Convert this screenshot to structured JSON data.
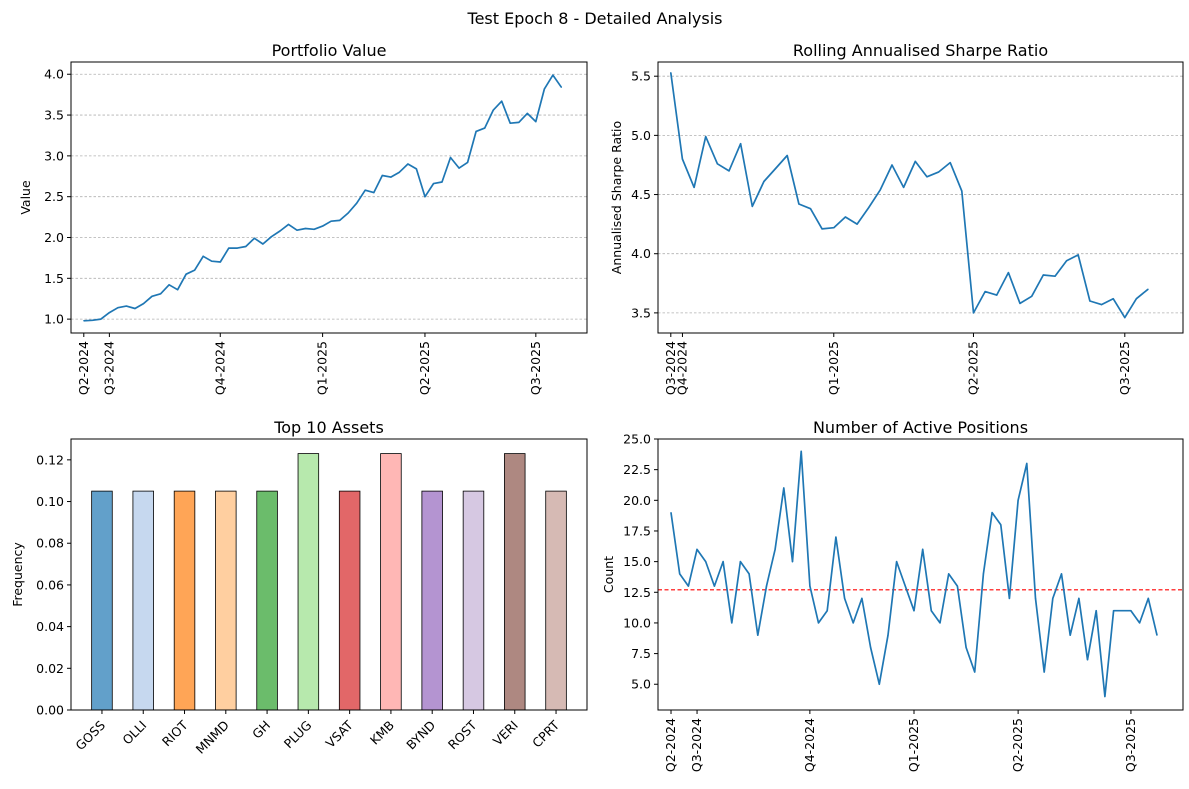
{
  "figure_title": "Test Epoch 8 - Detailed Analysis",
  "chart_data": [
    {
      "type": "line",
      "title": "Portfolio Value",
      "xlabel": "",
      "ylabel": "Value",
      "x_tick_labels": [
        "Q2-2024",
        "Q3-2024",
        "Q4-2024",
        "Q1-2025",
        "Q2-2025",
        "Q3-2025"
      ],
      "x_tick_positions": [
        0,
        3,
        16,
        28,
        40,
        53
      ],
      "xlim": [
        -1.5,
        59
      ],
      "ylim": [
        0.83,
        4.15
      ],
      "y_ticks": [
        1.0,
        1.5,
        2.0,
        2.5,
        3.0,
        3.5,
        4.0
      ],
      "grid": "y-dashed",
      "color": "#1f77b4",
      "series": [
        {
          "values": [
            0.98,
            0.985,
            1.0,
            1.08,
            1.14,
            1.16,
            1.13,
            1.19,
            1.28,
            1.31,
            1.42,
            1.36,
            1.55,
            1.6,
            1.77,
            1.71,
            1.7,
            1.87,
            1.87,
            1.89,
            1.99,
            1.92,
            2.01,
            2.08,
            2.16,
            2.09,
            2.11,
            2.1,
            2.14,
            2.2,
            2.21,
            2.3,
            2.42,
            2.58,
            2.55,
            2.76,
            2.74,
            2.8,
            2.9,
            2.84,
            2.5,
            2.66,
            2.68,
            2.98,
            2.85,
            2.92,
            3.3,
            3.34,
            3.56,
            3.67,
            3.4,
            3.41,
            3.52,
            3.42,
            3.82,
            3.99,
            3.84
          ]
        }
      ]
    },
    {
      "type": "line",
      "title": "Rolling Annualised Sharpe Ratio",
      "xlabel": "",
      "ylabel": "Annualised Sharpe Ratio",
      "x_tick_labels": [
        "Q3-2024",
        "Q4-2024",
        "Q1-2025",
        "Q2-2025",
        "Q3-2025"
      ],
      "x_tick_positions": [
        0,
        1,
        14,
        26,
        39
      ],
      "xlim": [
        -1.1,
        44
      ],
      "ylim": [
        3.33,
        5.62
      ],
      "y_ticks": [
        3.5,
        4.0,
        4.5,
        5.0,
        5.5
      ],
      "grid": "y-dashed",
      "color": "#1f77b4",
      "series": [
        {
          "values": [
            5.53,
            4.8,
            4.56,
            4.99,
            4.76,
            4.7,
            4.93,
            4.4,
            4.61,
            4.72,
            4.83,
            4.42,
            4.38,
            4.21,
            4.22,
            4.31,
            4.25,
            4.39,
            4.54,
            4.75,
            4.56,
            4.78,
            4.65,
            4.69,
            4.77,
            4.53,
            3.5,
            3.68,
            3.65,
            3.84,
            3.58,
            3.64,
            3.82,
            3.81,
            3.94,
            3.99,
            3.6,
            3.57,
            3.62,
            3.46,
            3.62,
            3.7
          ]
        }
      ]
    },
    {
      "type": "bar",
      "title": "Top 10 Assets",
      "xlabel": "",
      "ylabel": "Frequency",
      "categories": [
        "GOSS",
        "OLLI",
        "RIOT",
        "MNMD",
        "GH",
        "PLUG",
        "VSAT",
        "KMB",
        "BYND",
        "ROST",
        "VERI",
        "CPRT"
      ],
      "values": [
        0.105,
        0.105,
        0.105,
        0.105,
        0.105,
        0.123,
        0.105,
        0.123,
        0.105,
        0.105,
        0.123,
        0.105
      ],
      "colors": [
        "#1f77b4",
        "#aec7e8",
        "#ff7f0e",
        "#ffbb78",
        "#2ca02c",
        "#98df8a",
        "#d62728",
        "#ff9896",
        "#9467bd",
        "#c5b0d5",
        "#8c564b",
        "#c49c94"
      ],
      "ylim": [
        0,
        0.13
      ],
      "y_ticks": [
        0.0,
        0.02,
        0.04,
        0.06,
        0.08,
        0.1,
        0.12
      ]
    },
    {
      "type": "line",
      "title": "Number of Active Positions",
      "xlabel": "",
      "ylabel": "Count",
      "x_tick_labels": [
        "Q2-2024",
        "Q3-2024",
        "Q4-2024",
        "Q1-2025",
        "Q2-2025",
        "Q3-2025"
      ],
      "x_tick_positions": [
        0,
        3,
        16,
        28,
        40,
        53
      ],
      "xlim": [
        -1.5,
        59
      ],
      "ylim": [
        2.9,
        25.0
      ],
      "y_ticks": [
        5.0,
        7.5,
        10.0,
        12.5,
        15.0,
        17.5,
        20.0,
        22.5,
        25.0
      ],
      "mean_line": 12.7,
      "mean_line_color": "#ff0000",
      "color": "#1f77b4",
      "series": [
        {
          "values": [
            19,
            14,
            13,
            16,
            15,
            13,
            15,
            10,
            15,
            14,
            9,
            13,
            16,
            21,
            15,
            24,
            13,
            10,
            11,
            17,
            12,
            10,
            12,
            8,
            5,
            9,
            15,
            13,
            11,
            16,
            11,
            10,
            14,
            13,
            8,
            6,
            14,
            19,
            18,
            12,
            20,
            23,
            12,
            6,
            12,
            14,
            9,
            12,
            7,
            11,
            4,
            11,
            11,
            11,
            10,
            12,
            9
          ]
        }
      ]
    }
  ]
}
